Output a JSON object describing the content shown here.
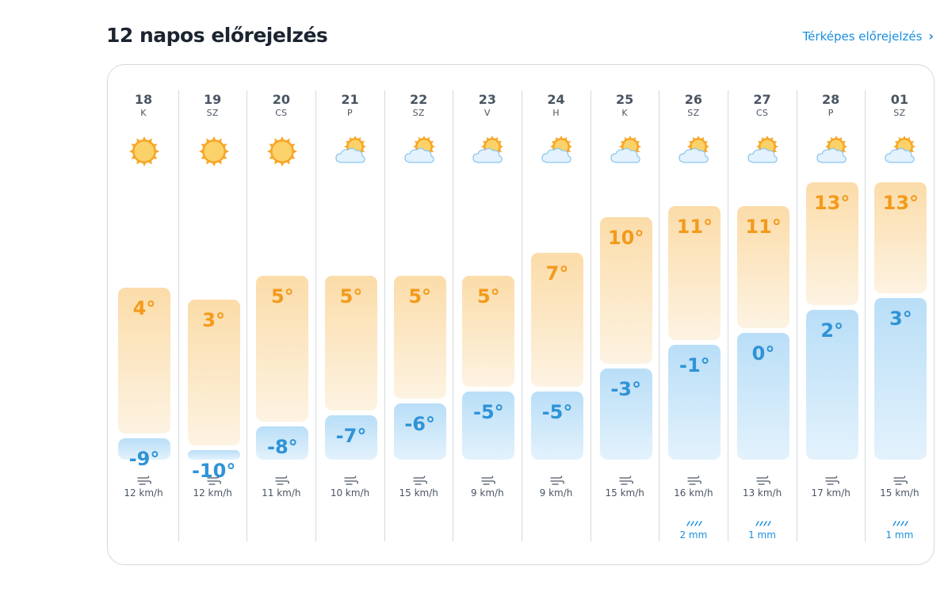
{
  "title": "12 napos előrejelzés",
  "map_link": {
    "label": "Térképes előrejelzés",
    "chevron": "›"
  },
  "wind_icon": "wind-icon",
  "rain_icon": "rain-icon",
  "colors": {
    "accent": "#1a8fe0",
    "high": "#f39a1b",
    "low": "#2f93d6"
  },
  "temp_scale": {
    "min": -10,
    "max": 13
  },
  "days": [
    {
      "date": "18",
      "dow": "K",
      "icon": "sun",
      "high": 4,
      "low": -9,
      "high_label": "4°",
      "low_label": "-9°",
      "wind": "12 km/h",
      "rain": ""
    },
    {
      "date": "19",
      "dow": "SZ",
      "icon": "sun",
      "high": 3,
      "low": -10,
      "high_label": "3°",
      "low_label": "-10°",
      "wind": "12 km/h",
      "rain": ""
    },
    {
      "date": "20",
      "dow": "CS",
      "icon": "sun",
      "high": 5,
      "low": -8,
      "high_label": "5°",
      "low_label": "-8°",
      "wind": "11 km/h",
      "rain": ""
    },
    {
      "date": "21",
      "dow": "P",
      "icon": "cloud",
      "high": 5,
      "low": -7,
      "high_label": "5°",
      "low_label": "-7°",
      "wind": "10 km/h",
      "rain": ""
    },
    {
      "date": "22",
      "dow": "SZ",
      "icon": "cloud",
      "high": 5,
      "low": -6,
      "high_label": "5°",
      "low_label": "-6°",
      "wind": "15 km/h",
      "rain": ""
    },
    {
      "date": "23",
      "dow": "V",
      "icon": "cloud",
      "high": 5,
      "low": -5,
      "high_label": "5°",
      "low_label": "-5°",
      "wind": "9 km/h",
      "rain": ""
    },
    {
      "date": "24",
      "dow": "H",
      "icon": "cloud",
      "high": 7,
      "low": -5,
      "high_label": "7°",
      "low_label": "-5°",
      "wind": "9 km/h",
      "rain": ""
    },
    {
      "date": "25",
      "dow": "K",
      "icon": "cloud",
      "high": 10,
      "low": -3,
      "high_label": "10°",
      "low_label": "-3°",
      "wind": "15 km/h",
      "rain": ""
    },
    {
      "date": "26",
      "dow": "SZ",
      "icon": "cloud",
      "high": 11,
      "low": -1,
      "high_label": "11°",
      "low_label": "-1°",
      "wind": "16 km/h",
      "rain": "2 mm"
    },
    {
      "date": "27",
      "dow": "CS",
      "icon": "cloud",
      "high": 11,
      "low": 0,
      "high_label": "11°",
      "low_label": "0°",
      "wind": "13 km/h",
      "rain": "1 mm"
    },
    {
      "date": "28",
      "dow": "P",
      "icon": "cloud",
      "high": 13,
      "low": 2,
      "high_label": "13°",
      "low_label": "2°",
      "wind": "17 km/h",
      "rain": ""
    },
    {
      "date": "01",
      "dow": "SZ",
      "icon": "cloud",
      "high": 13,
      "low": 3,
      "high_label": "13°",
      "low_label": "3°",
      "wind": "15 km/h",
      "rain": "1 mm"
    }
  ]
}
